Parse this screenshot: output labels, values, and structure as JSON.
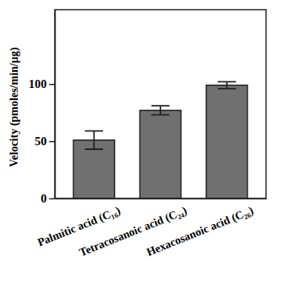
{
  "chart_data": {
    "type": "bar",
    "y_label": "Velocity (pmoles/min/μg)",
    "categories": [
      "Palmitic acid (C₁₆)",
      "Tetracosanoic acid (C₂₄)",
      "Hexacosanoic acid (C₂₆)"
    ],
    "values": [
      51,
      77,
      99
    ],
    "errors": [
      8,
      4,
      3
    ],
    "color": "#707070",
    "ylim": [
      0,
      165
    ],
    "yticks": [
      0,
      50,
      100
    ],
    "grid": false
  }
}
